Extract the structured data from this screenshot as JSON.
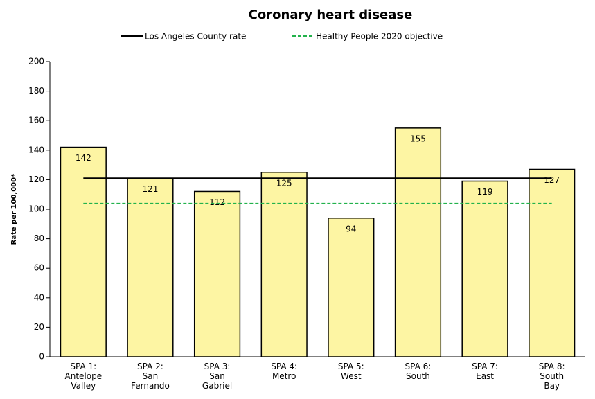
{
  "chart_data": {
    "type": "bar",
    "title": "Coronary heart disease",
    "y_label": "Rate per 100,000*",
    "categories": [
      "SPA 1: Antelope Valley",
      "SPA 2: San Fernando",
      "SPA 3: San Gabriel",
      "SPA 4: Metro",
      "SPA 5: West",
      "SPA 6: South",
      "SPA 7: East",
      "SPA 8: South Bay"
    ],
    "values": [
      142,
      121,
      112,
      125,
      94,
      155,
      119,
      127
    ],
    "color": "#fdf5a3",
    "reference_lines": [
      {
        "name": "Los Angeles County rate",
        "value": 121,
        "color": "#000000",
        "dashed": false
      },
      {
        "name": "Healthy People 2020 objective",
        "value": 103.8,
        "color": "#22b24c",
        "dashed": true
      }
    ],
    "ylim": [
      0,
      200
    ],
    "yticks": [
      0,
      20,
      40,
      60,
      80,
      100,
      120,
      140,
      160,
      180,
      200
    ],
    "grid": false
  }
}
